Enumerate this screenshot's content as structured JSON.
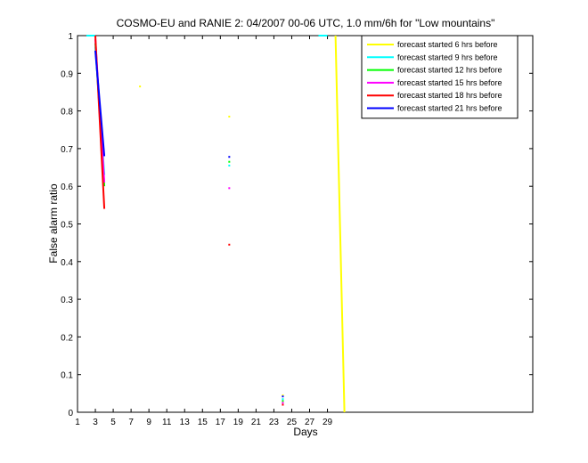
{
  "chart_data": {
    "type": "line",
    "title": "COSMO-EU and RANIE 2: 04/2007 00-06 UTC, 1.0 mm/6h for \"Low mountains\"",
    "xlabel": "Days",
    "ylabel": "False alarm ratio",
    "xlim": [
      1,
      52
    ],
    "ylim": [
      0,
      1
    ],
    "xticks": [
      1,
      3,
      5,
      7,
      9,
      11,
      13,
      15,
      17,
      19,
      21,
      23,
      25,
      27,
      29
    ],
    "yticks": [
      0,
      0.1,
      0.2,
      0.3,
      0.4,
      0.5,
      0.6,
      0.7,
      0.8,
      0.9,
      1
    ],
    "ytick_labels": [
      "0",
      "0.1",
      "0.2",
      "0.3",
      "0.4",
      "0.5",
      "0.6",
      "0.7",
      "0.8",
      "0.9",
      "1"
    ],
    "grid": false,
    "legend_position": "top-right",
    "series": [
      {
        "name": "forecast started 6 hrs before",
        "color": "#ffff00",
        "lines": [
          [
            [
              29.9,
              1.0
            ],
            [
              30.9,
              0.0
            ]
          ]
        ],
        "points": [
          [
            8.0,
            0.865
          ],
          [
            18.0,
            0.785
          ],
          [
            24.0,
            0.045
          ]
        ]
      },
      {
        "name": "forecast started 9 hrs before",
        "color": "#00ffff",
        "lines": [
          [
            [
              2.0,
              1.0
            ],
            [
              3.0,
              1.0
            ]
          ],
          [
            [
              3.0,
              0.97
            ],
            [
              4.0,
              0.63
            ]
          ],
          [
            [
              28.0,
              1.0
            ],
            [
              29.0,
              1.0
            ]
          ]
        ],
        "points": [
          [
            18.0,
            0.655
          ],
          [
            24.0,
            0.035
          ]
        ]
      },
      {
        "name": "forecast started 12 hrs before",
        "color": "#00ff00",
        "lines": [
          [
            [
              3.0,
              0.98
            ],
            [
              4.0,
              0.6
            ]
          ]
        ],
        "points": [
          [
            18.0,
            0.665
          ],
          [
            24.0,
            0.03
          ]
        ]
      },
      {
        "name": "forecast started 15 hrs before",
        "color": "#ff00ff",
        "lines": [
          [
            [
              3.0,
              0.99
            ],
            [
              4.0,
              0.61
            ]
          ]
        ],
        "points": [
          [
            18.0,
            0.595
          ],
          [
            24.0,
            0.025
          ]
        ]
      },
      {
        "name": "forecast started 18 hrs before",
        "color": "#ff0000",
        "lines": [
          [
            [
              3.0,
              1.0
            ],
            [
              4.0,
              0.54
            ]
          ]
        ],
        "points": [
          [
            18.0,
            0.445
          ],
          [
            24.0,
            0.02
          ]
        ]
      },
      {
        "name": "forecast started 21 hrs before",
        "color": "#0000ff",
        "lines": [
          [
            [
              3.0,
              0.96
            ],
            [
              4.0,
              0.68
            ]
          ]
        ],
        "points": [
          [
            18.0,
            0.678
          ],
          [
            24.0,
            0.042
          ]
        ]
      }
    ]
  }
}
